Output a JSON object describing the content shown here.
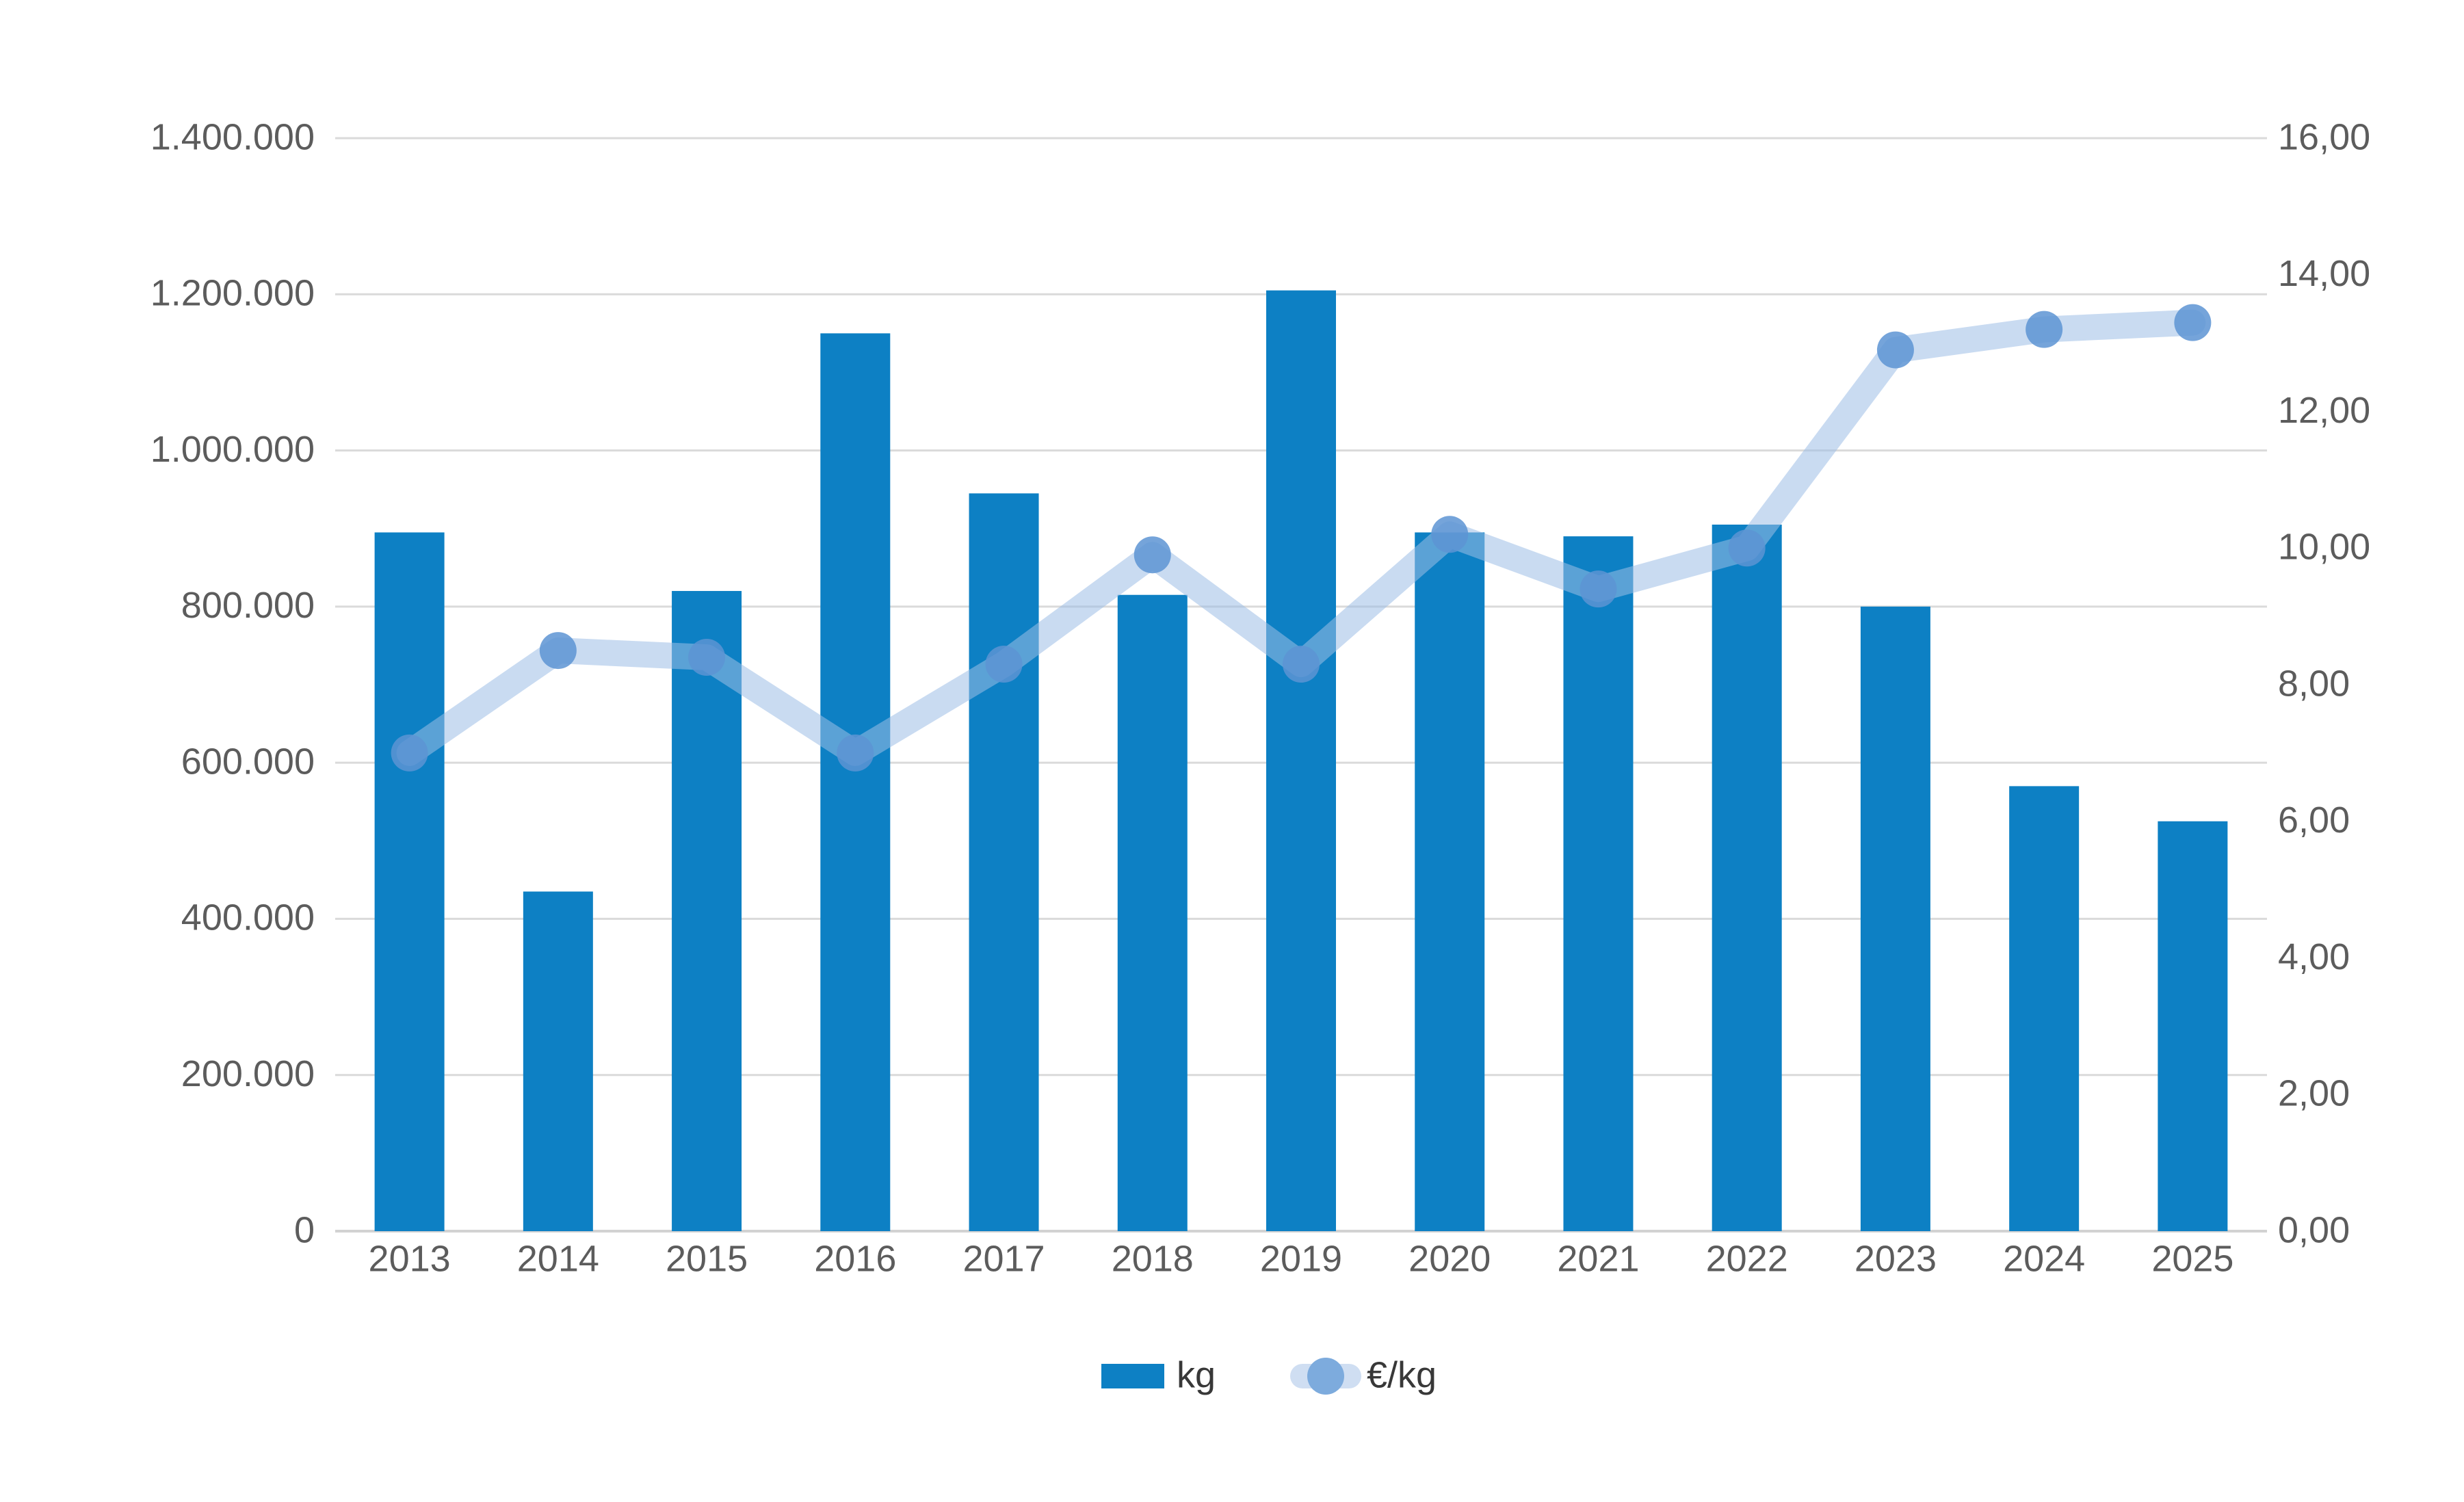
{
  "chart_data": {
    "type": "bar+line",
    "title": "",
    "categories": [
      "2013",
      "2014",
      "2015",
      "2016",
      "2017",
      "2018",
      "2019",
      "2020",
      "2021",
      "2022",
      "2023",
      "2024",
      "2025"
    ],
    "series": [
      {
        "name": "kg",
        "type": "bar",
        "axis": "left",
        "values": [
          895000,
          435000,
          820000,
          1150000,
          945000,
          815000,
          1205000,
          895000,
          890000,
          905000,
          800000,
          570000,
          525000
        ]
      },
      {
        "name": "€/kg",
        "type": "line",
        "axis": "right",
        "values": [
          7.0,
          8.5,
          8.4,
          7.0,
          8.3,
          9.9,
          8.3,
          10.2,
          9.4,
          10.0,
          12.9,
          13.2,
          13.3
        ]
      }
    ],
    "left_axis": {
      "min": 0,
      "max": 1400000,
      "step": 200000,
      "tick_labels": [
        "0",
        "200.000",
        "400.000",
        "600.000",
        "800.000",
        "1.000.000",
        "1.200.000",
        "1.400.000"
      ]
    },
    "right_axis": {
      "min": 0,
      "max": 16,
      "step": 2,
      "tick_labels": [
        "0,00",
        "2,00",
        "4,00",
        "6,00",
        "8,00",
        "10,00",
        "12,00",
        "14,00",
        "16,00"
      ]
    },
    "grid": "horizontal",
    "legend_position": "bottom"
  },
  "legend": {
    "items": [
      {
        "label": "kg"
      },
      {
        "label": "€/kg"
      }
    ]
  },
  "colors": {
    "bar": "#0d80c4",
    "line": "rgba(157,189,229,0.55)",
    "marker": "rgba(93,148,211,0.85)",
    "grid": "#dadada",
    "axis_line": "#d2d2d2",
    "tick_text": "#5c5c5c",
    "legend_text": "#383838",
    "legend_line_swatch": "#cfdef2",
    "legend_marker": "#7dabdd",
    "background": "#ffffff"
  }
}
